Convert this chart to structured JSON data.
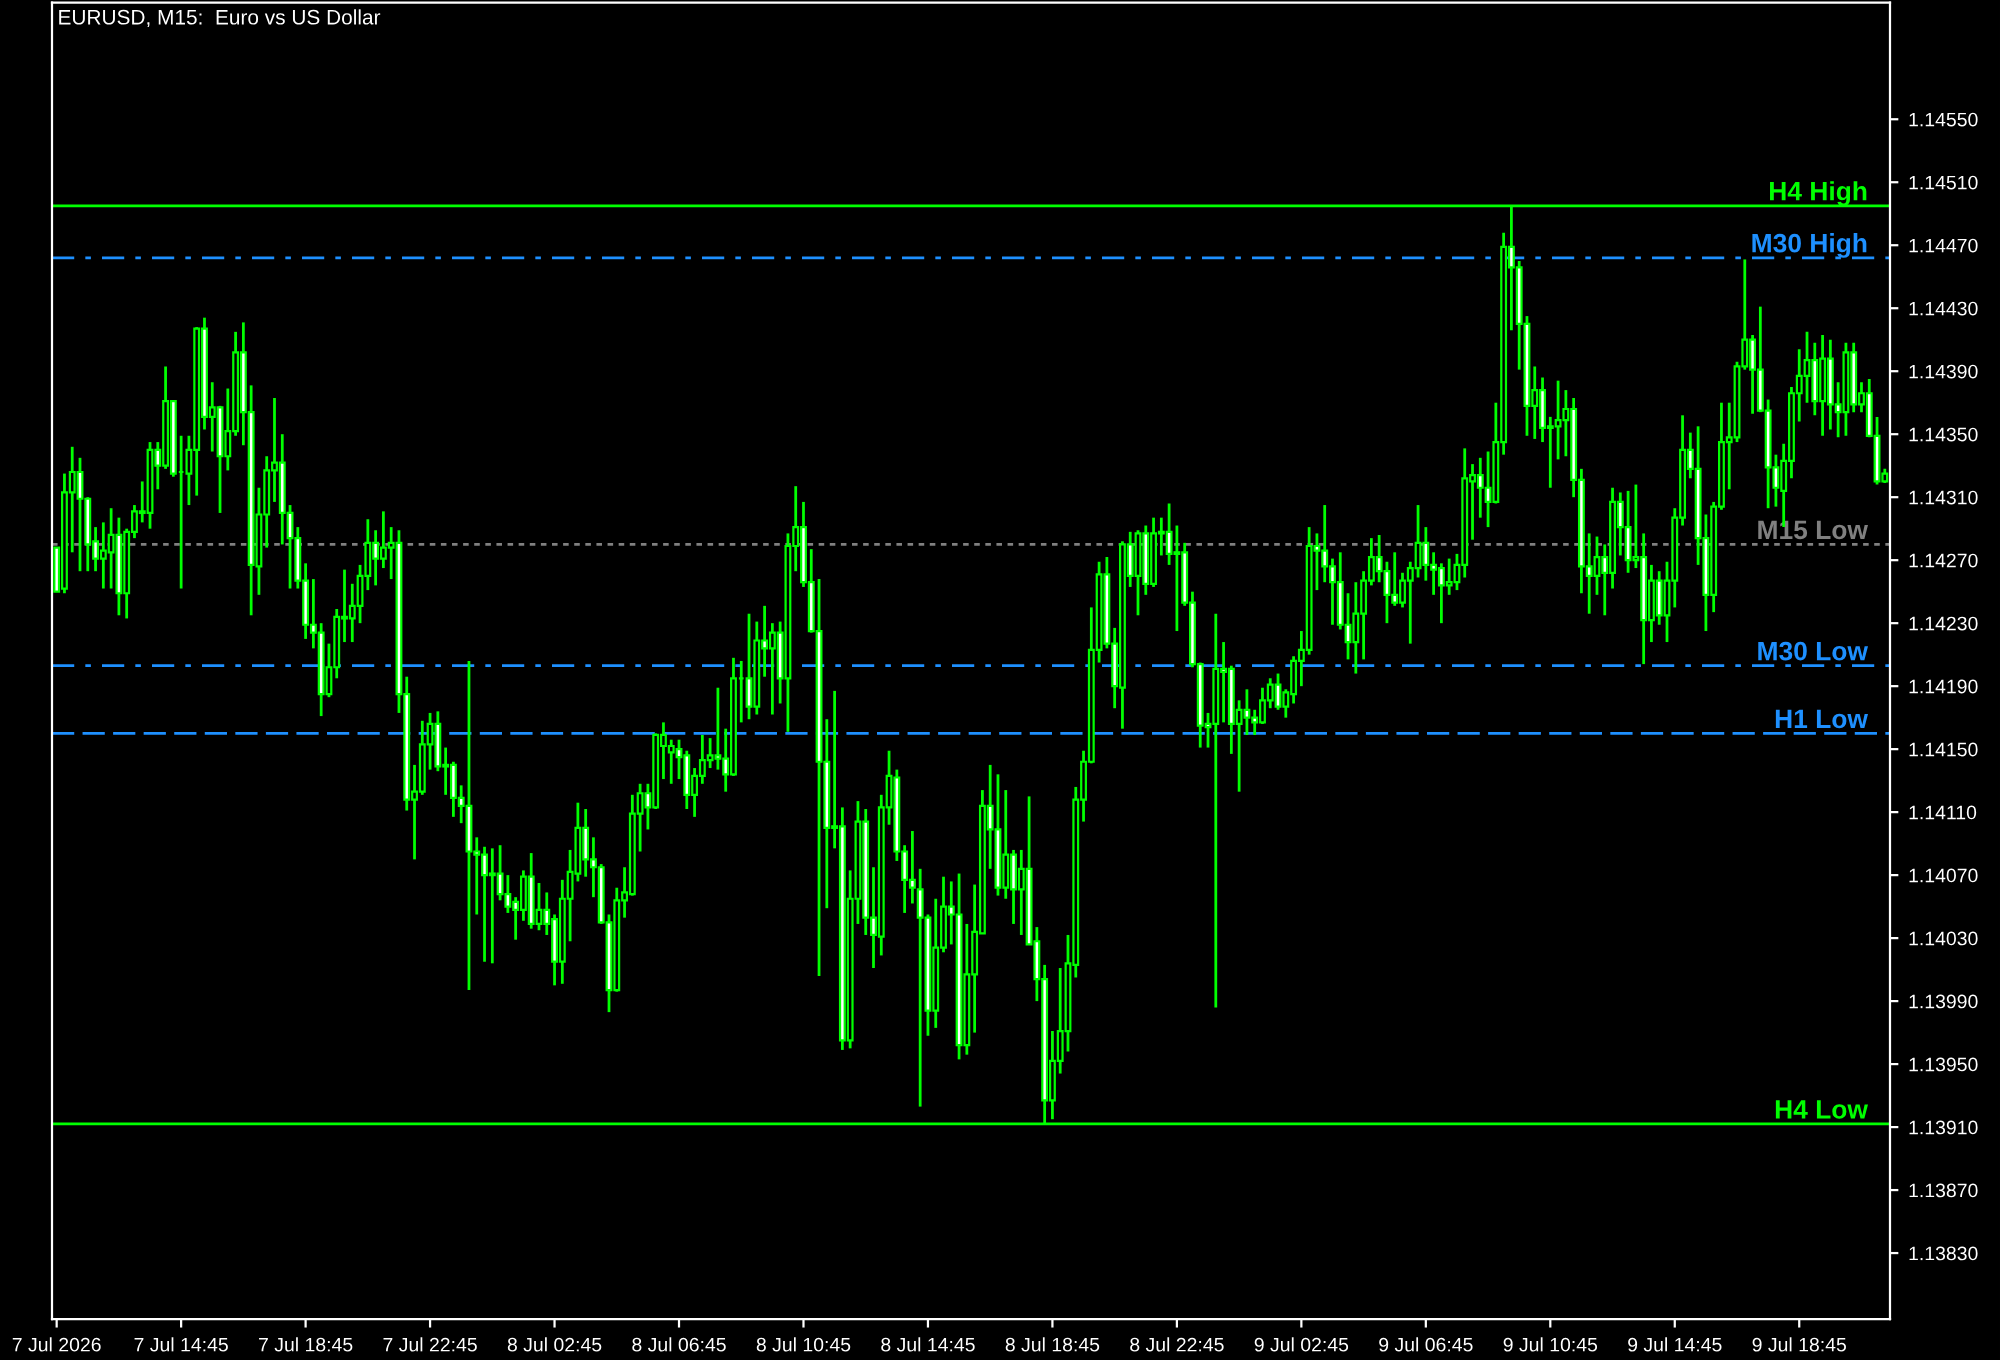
{
  "chart_data": {
    "type": "candlestick",
    "title": "EURUSD, M15:  Euro vs US Dollar",
    "color": "#00ff00",
    "x": [
      "2026-07-07T10:45",
      "2026-07-07T11:00",
      "2026-07-07T11:15",
      "2026-07-07T11:30",
      "2026-07-07T11:45",
      "2026-07-07T12:00",
      "2026-07-07T12:15",
      "2026-07-07T12:30",
      "2026-07-07T12:45",
      "2026-07-07T13:00",
      "2026-07-07T13:15",
      "2026-07-07T13:30",
      "2026-07-07T13:45",
      "2026-07-07T14:00",
      "2026-07-07T14:15",
      "2026-07-07T14:30",
      "2026-07-07T14:45",
      "2026-07-07T15:00",
      "2026-07-07T15:15",
      "2026-07-07T15:30",
      "2026-07-07T15:45",
      "2026-07-07T16:00",
      "2026-07-07T16:15",
      "2026-07-07T16:30",
      "2026-07-07T16:45",
      "2026-07-07T17:00",
      "2026-07-07T17:15",
      "2026-07-07T17:30",
      "2026-07-07T17:45",
      "2026-07-07T18:00",
      "2026-07-07T18:15",
      "2026-07-07T18:30",
      "2026-07-07T18:45",
      "2026-07-07T19:00",
      "2026-07-07T19:15",
      "2026-07-07T19:30",
      "2026-07-07T19:45",
      "2026-07-07T20:00",
      "2026-07-07T20:15",
      "2026-07-07T20:30",
      "2026-07-07T20:45",
      "2026-07-07T21:00",
      "2026-07-07T21:15",
      "2026-07-07T21:30",
      "2026-07-07T21:45",
      "2026-07-07T22:00",
      "2026-07-07T22:15",
      "2026-07-07T22:30",
      "2026-07-07T22:45",
      "2026-07-07T23:00",
      "2026-07-07T23:15",
      "2026-07-07T23:30",
      "2026-07-07T23:45",
      "2026-07-08T00:00",
      "2026-07-08T00:15",
      "2026-07-08T00:30",
      "2026-07-08T00:45",
      "2026-07-08T01:00",
      "2026-07-08T01:15",
      "2026-07-08T01:30",
      "2026-07-08T01:45",
      "2026-07-08T02:00",
      "2026-07-08T02:15",
      "2026-07-08T02:30",
      "2026-07-08T02:45",
      "2026-07-08T03:00",
      "2026-07-08T03:15",
      "2026-07-08T03:30",
      "2026-07-08T03:45",
      "2026-07-08T04:00",
      "2026-07-08T04:15",
      "2026-07-08T04:30",
      "2026-07-08T04:45",
      "2026-07-08T05:00",
      "2026-07-08T05:15",
      "2026-07-08T05:30",
      "2026-07-08T05:45",
      "2026-07-08T06:00",
      "2026-07-08T06:15",
      "2026-07-08T06:30",
      "2026-07-08T06:45",
      "2026-07-08T07:00",
      "2026-07-08T07:15",
      "2026-07-08T07:30",
      "2026-07-08T07:45",
      "2026-07-08T08:00",
      "2026-07-08T08:15",
      "2026-07-08T08:30",
      "2026-07-08T08:45",
      "2026-07-08T09:00",
      "2026-07-08T09:15",
      "2026-07-08T09:30",
      "2026-07-08T09:45",
      "2026-07-08T10:00",
      "2026-07-08T10:15",
      "2026-07-08T10:30",
      "2026-07-08T10:45",
      "2026-07-08T11:00",
      "2026-07-08T11:15",
      "2026-07-08T11:30",
      "2026-07-08T11:45",
      "2026-07-08T12:00",
      "2026-07-08T12:15",
      "2026-07-08T12:30",
      "2026-07-08T12:45",
      "2026-07-08T13:00",
      "2026-07-08T13:15",
      "2026-07-08T13:30",
      "2026-07-08T13:45",
      "2026-07-08T14:00",
      "2026-07-08T14:15",
      "2026-07-08T14:30",
      "2026-07-08T14:45",
      "2026-07-08T15:00",
      "2026-07-08T15:15",
      "2026-07-08T15:30",
      "2026-07-08T15:45",
      "2026-07-08T16:00",
      "2026-07-08T16:15",
      "2026-07-08T16:30",
      "2026-07-08T16:45",
      "2026-07-08T17:00",
      "2026-07-08T17:15",
      "2026-07-08T17:30",
      "2026-07-08T17:45",
      "2026-07-08T18:00",
      "2026-07-08T18:15",
      "2026-07-08T18:30",
      "2026-07-08T18:45",
      "2026-07-08T19:00",
      "2026-07-08T19:15",
      "2026-07-08T19:30",
      "2026-07-08T19:45",
      "2026-07-08T20:00",
      "2026-07-08T20:15",
      "2026-07-08T20:30",
      "2026-07-08T20:45",
      "2026-07-08T21:00",
      "2026-07-08T21:15",
      "2026-07-08T21:30",
      "2026-07-08T21:45",
      "2026-07-08T22:00",
      "2026-07-08T22:15",
      "2026-07-08T22:30",
      "2026-07-08T22:45",
      "2026-07-08T23:00",
      "2026-07-08T23:15",
      "2026-07-08T23:30",
      "2026-07-08T23:45",
      "2026-07-09T00:00",
      "2026-07-09T00:15",
      "2026-07-09T00:30",
      "2026-07-09T00:45",
      "2026-07-09T01:00",
      "2026-07-09T01:15",
      "2026-07-09T01:30",
      "2026-07-09T01:45",
      "2026-07-09T02:00",
      "2026-07-09T02:15",
      "2026-07-09T02:30",
      "2026-07-09T02:45",
      "2026-07-09T03:00",
      "2026-07-09T03:15",
      "2026-07-09T03:30",
      "2026-07-09T03:45",
      "2026-07-09T04:00",
      "2026-07-09T04:15",
      "2026-07-09T04:30",
      "2026-07-09T04:45",
      "2026-07-09T05:00",
      "2026-07-09T05:15",
      "2026-07-09T05:30",
      "2026-07-09T05:45",
      "2026-07-09T06:00",
      "2026-07-09T06:15",
      "2026-07-09T06:30",
      "2026-07-09T06:45",
      "2026-07-09T07:00",
      "2026-07-09T07:15",
      "2026-07-09T07:30",
      "2026-07-09T07:45",
      "2026-07-09T08:00",
      "2026-07-09T08:15",
      "2026-07-09T08:30",
      "2026-07-09T08:45",
      "2026-07-09T09:00",
      "2026-07-09T09:15",
      "2026-07-09T09:30",
      "2026-07-09T09:45",
      "2026-07-09T10:00",
      "2026-07-09T10:15",
      "2026-07-09T10:30",
      "2026-07-09T10:45",
      "2026-07-09T11:00",
      "2026-07-09T11:15",
      "2026-07-09T11:30",
      "2026-07-09T11:45",
      "2026-07-09T12:00",
      "2026-07-09T12:15",
      "2026-07-09T12:30",
      "2026-07-09T12:45",
      "2026-07-09T13:00",
      "2026-07-09T13:15",
      "2026-07-09T13:30",
      "2026-07-09T13:45",
      "2026-07-09T14:00",
      "2026-07-09T14:15",
      "2026-07-09T14:30",
      "2026-07-09T14:45",
      "2026-07-09T15:00",
      "2026-07-09T15:15",
      "2026-07-09T15:30",
      "2026-07-09T15:45",
      "2026-07-09T16:00",
      "2026-07-09T16:15",
      "2026-07-09T16:30",
      "2026-07-09T16:45",
      "2026-07-09T17:00",
      "2026-07-09T17:15",
      "2026-07-09T17:30",
      "2026-07-09T17:45",
      "2026-07-09T18:00",
      "2026-07-09T18:15",
      "2026-07-09T18:30",
      "2026-07-09T18:45",
      "2026-07-09T19:00",
      "2026-07-09T19:15",
      "2026-07-09T19:30",
      "2026-07-09T19:45",
      "2026-07-09T20:00",
      "2026-07-09T20:15",
      "2026-07-09T20:30",
      "2026-07-09T20:45",
      "2026-07-09T21:00",
      "2026-07-09T21:15",
      "2026-07-09T21:30"
    ],
    "ohlc": [
      [
        1.14278,
        1.14278,
        1.1425,
        1.1425
      ],
      [
        1.14252,
        1.14325,
        1.14249,
        1.14313
      ],
      [
        1.14313,
        1.14342,
        1.14275,
        1.14326
      ],
      [
        1.14326,
        1.14335,
        1.14263,
        1.14309
      ],
      [
        1.14309,
        1.1431,
        1.14263,
        1.1428
      ],
      [
        1.14282,
        1.14291,
        1.14263,
        1.14271
      ],
      [
        1.14271,
        1.14294,
        1.14252,
        1.14276
      ],
      [
        1.14275,
        1.14303,
        1.14252,
        1.14286
      ],
      [
        1.14286,
        1.14297,
        1.14235,
        1.14249
      ],
      [
        1.14249,
        1.1429,
        1.14233,
        1.14288
      ],
      [
        1.14288,
        1.14305,
        1.14284,
        1.14301
      ],
      [
        1.14301,
        1.1432,
        1.14294,
        1.143
      ],
      [
        1.143,
        1.14345,
        1.1429,
        1.1434
      ],
      [
        1.1434,
        1.14345,
        1.14315,
        1.1433
      ],
      [
        1.1433,
        1.14393,
        1.14328,
        1.14371
      ],
      [
        1.14371,
        1.14371,
        1.14323,
        1.14325
      ],
      [
        1.14326,
        1.14349,
        1.14252,
        1.14326
      ],
      [
        1.14325,
        1.14349,
        1.14305,
        1.1434
      ],
      [
        1.1434,
        1.14418,
        1.14311,
        1.14417
      ],
      [
        1.14417,
        1.14424,
        1.14353,
        1.14361
      ],
      [
        1.14361,
        1.14383,
        1.14339,
        1.14367
      ],
      [
        1.14367,
        1.14368,
        1.143,
        1.14336
      ],
      [
        1.14336,
        1.14379,
        1.14327,
        1.14352
      ],
      [
        1.14352,
        1.14415,
        1.14349,
        1.14402
      ],
      [
        1.14402,
        1.14421,
        1.14343,
        1.14364
      ],
      [
        1.14364,
        1.14381,
        1.14235,
        1.14267
      ],
      [
        1.14266,
        1.14316,
        1.14248,
        1.14299
      ],
      [
        1.14299,
        1.14336,
        1.14278,
        1.14327
      ],
      [
        1.14327,
        1.14373,
        1.14307,
        1.14332
      ],
      [
        1.14332,
        1.1435,
        1.1428,
        1.143
      ],
      [
        1.143,
        1.14305,
        1.14252,
        1.14284
      ],
      [
        1.14284,
        1.14291,
        1.14252,
        1.14257
      ],
      [
        1.14257,
        1.14268,
        1.1422,
        1.14229
      ],
      [
        1.14229,
        1.14258,
        1.14214,
        1.14224
      ],
      [
        1.14224,
        1.1423,
        1.14171,
        1.14185
      ],
      [
        1.14185,
        1.14217,
        1.14183,
        1.14202
      ],
      [
        1.14202,
        1.14239,
        1.14195,
        1.14234
      ],
      [
        1.14234,
        1.14264,
        1.14218,
        1.14233
      ],
      [
        1.14233,
        1.14255,
        1.14218,
        1.14241
      ],
      [
        1.14241,
        1.14267,
        1.1423,
        1.1426
      ],
      [
        1.1426,
        1.14296,
        1.14251,
        1.14281
      ],
      [
        1.14281,
        1.14289,
        1.14254,
        1.14271
      ],
      [
        1.14271,
        1.14301,
        1.14265,
        1.14278
      ],
      [
        1.14278,
        1.14291,
        1.14258,
        1.14281
      ],
      [
        1.14281,
        1.14289,
        1.14173,
        1.14185
      ],
      [
        1.14185,
        1.14196,
        1.14111,
        1.14118
      ],
      [
        1.14118,
        1.1414,
        1.1408,
        1.14123
      ],
      [
        1.14123,
        1.14168,
        1.14121,
        1.14153
      ],
      [
        1.14153,
        1.14173,
        1.14137,
        1.14166
      ],
      [
        1.14166,
        1.14174,
        1.14136,
        1.14139
      ],
      [
        1.14139,
        1.14151,
        1.14121,
        1.1414
      ],
      [
        1.1414,
        1.14142,
        1.14107,
        1.14119
      ],
      [
        1.14119,
        1.14127,
        1.14103,
        1.14114
      ],
      [
        1.14114,
        1.14206,
        1.13997,
        1.14085
      ],
      [
        1.14085,
        1.14094,
        1.14045,
        1.14083
      ],
      [
        1.14083,
        1.14088,
        1.14015,
        1.1407
      ],
      [
        1.14071,
        1.14087,
        1.14014,
        1.1407
      ],
      [
        1.14071,
        1.14089,
        1.14054,
        1.14058
      ],
      [
        1.14058,
        1.1407,
        1.14046,
        1.1405
      ],
      [
        1.14053,
        1.14056,
        1.14029,
        1.14048
      ],
      [
        1.14048,
        1.14073,
        1.14041,
        1.14069
      ],
      [
        1.14069,
        1.14084,
        1.14036,
        1.14039
      ],
      [
        1.14039,
        1.14065,
        1.14035,
        1.14048
      ],
      [
        1.14048,
        1.14059,
        1.14032,
        1.14039
      ],
      [
        1.14042,
        1.14045,
        1.14,
        1.14015
      ],
      [
        1.14015,
        1.14067,
        1.14001,
        1.14055
      ],
      [
        1.14055,
        1.14086,
        1.14028,
        1.14072
      ],
      [
        1.14071,
        1.14116,
        1.14066,
        1.141
      ],
      [
        1.141,
        1.14112,
        1.14069,
        1.1408
      ],
      [
        1.1408,
        1.14094,
        1.14056,
        1.14075
      ],
      [
        1.14075,
        1.14077,
        1.14039,
        1.1404
      ],
      [
        1.1404,
        1.14045,
        1.13983,
        1.13997
      ],
      [
        1.13997,
        1.14062,
        1.13996,
        1.14054
      ],
      [
        1.14054,
        1.14075,
        1.14043,
        1.14059
      ],
      [
        1.14058,
        1.14121,
        1.14057,
        1.14109
      ],
      [
        1.14109,
        1.14128,
        1.14085,
        1.14122
      ],
      [
        1.14122,
        1.14128,
        1.14099,
        1.14113
      ],
      [
        1.14113,
        1.1416,
        1.14112,
        1.14159
      ],
      [
        1.14152,
        1.14167,
        1.14131,
        1.14159
      ],
      [
        1.14148,
        1.14156,
        1.14128,
        1.14152
      ],
      [
        1.1415,
        1.14156,
        1.14131,
        1.14145
      ],
      [
        1.14146,
        1.14149,
        1.14112,
        1.14121
      ],
      [
        1.14121,
        1.14138,
        1.14107,
        1.14133
      ],
      [
        1.14133,
        1.14159,
        1.14128,
        1.14143
      ],
      [
        1.14143,
        1.14157,
        1.14138,
        1.14146
      ],
      [
        1.14146,
        1.14189,
        1.14137,
        1.14144
      ],
      [
        1.14144,
        1.14163,
        1.14123,
        1.14134
      ],
      [
        1.14134,
        1.14208,
        1.14133,
        1.14195
      ],
      [
        1.14195,
        1.14206,
        1.14167,
        1.14195
      ],
      [
        1.14195,
        1.14236,
        1.14169,
        1.14177
      ],
      [
        1.14177,
        1.14231,
        1.14172,
        1.14219
      ],
      [
        1.14219,
        1.14241,
        1.14196,
        1.14214
      ],
      [
        1.14214,
        1.1423,
        1.14172,
        1.14224
      ],
      [
        1.14224,
        1.14231,
        1.14179,
        1.14195
      ],
      [
        1.14195,
        1.14287,
        1.14161,
        1.14279
      ],
      [
        1.14279,
        1.14317,
        1.14263,
        1.14291
      ],
      [
        1.14291,
        1.14307,
        1.14253,
        1.14256
      ],
      [
        1.14256,
        1.14277,
        1.14224,
        1.14225
      ],
      [
        1.14225,
        1.14258,
        1.14006,
        1.14142
      ],
      [
        1.14142,
        1.14169,
        1.14049,
        1.141
      ],
      [
        1.141,
        1.14187,
        1.14087,
        1.14101
      ],
      [
        1.14101,
        1.14113,
        1.13959,
        1.13965
      ],
      [
        1.13965,
        1.14073,
        1.1396,
        1.14055
      ],
      [
        1.14055,
        1.14117,
        1.14039,
        1.14104
      ],
      [
        1.14104,
        1.14112,
        1.14032,
        1.14043
      ],
      [
        1.14043,
        1.14075,
        1.14011,
        1.14032
      ],
      [
        1.14031,
        1.14121,
        1.14019,
        1.14113
      ],
      [
        1.14113,
        1.14149,
        1.14102,
        1.14133
      ],
      [
        1.14132,
        1.14137,
        1.14079,
        1.14085
      ],
      [
        1.14085,
        1.14089,
        1.14046,
        1.14067
      ],
      [
        1.14067,
        1.14098,
        1.14052,
        1.14062
      ],
      [
        1.14061,
        1.14074,
        1.13923,
        1.14043
      ],
      [
        1.14043,
        1.14045,
        1.13968,
        1.13984
      ],
      [
        1.13984,
        1.14055,
        1.13973,
        1.14024
      ],
      [
        1.14024,
        1.14069,
        1.14021,
        1.1405
      ],
      [
        1.1405,
        1.14066,
        1.14026,
        1.14045
      ],
      [
        1.14045,
        1.14071,
        1.13953,
        1.13962
      ],
      [
        1.13962,
        1.14039,
        1.13956,
        1.14007
      ],
      [
        1.14007,
        1.14064,
        1.1397,
        1.14034
      ],
      [
        1.14033,
        1.14124,
        1.14033,
        1.14114
      ],
      [
        1.14114,
        1.1414,
        1.14074,
        1.14099
      ],
      [
        1.14099,
        1.14134,
        1.14057,
        1.14062
      ],
      [
        1.14062,
        1.14124,
        1.14055,
        1.14083
      ],
      [
        1.14083,
        1.14086,
        1.14039,
        1.14061
      ],
      [
        1.14061,
        1.14086,
        1.14032,
        1.14074
      ],
      [
        1.14074,
        1.1412,
        1.14026,
        1.14026
      ],
      [
        1.14028,
        1.14037,
        1.1399,
        1.14004
      ],
      [
        1.14004,
        1.14013,
        1.13912,
        1.13927
      ],
      [
        1.13927,
        1.13971,
        1.13915,
        1.13952
      ],
      [
        1.13952,
        1.14011,
        1.13944,
        1.13971
      ],
      [
        1.13971,
        1.14032,
        1.13958,
        1.14014
      ],
      [
        1.14013,
        1.14126,
        1.14005,
        1.14118
      ],
      [
        1.14118,
        1.14149,
        1.14104,
        1.14142
      ],
      [
        1.14142,
        1.1424,
        1.14141,
        1.14213
      ],
      [
        1.14213,
        1.14269,
        1.14205,
        1.14261
      ],
      [
        1.14261,
        1.14272,
        1.14214,
        1.14217
      ],
      [
        1.14217,
        1.14227,
        1.14176,
        1.1419
      ],
      [
        1.14189,
        1.14282,
        1.14163,
        1.1428
      ],
      [
        1.1428,
        1.14288,
        1.14253,
        1.1426
      ],
      [
        1.1426,
        1.14289,
        1.14235,
        1.14287
      ],
      [
        1.14287,
        1.14292,
        1.14248,
        1.14255
      ],
      [
        1.14255,
        1.14297,
        1.14253,
        1.14287
      ],
      [
        1.14287,
        1.14297,
        1.14273,
        1.14288
      ],
      [
        1.14288,
        1.14306,
        1.14267,
        1.14274
      ],
      [
        1.14274,
        1.14292,
        1.14225,
        1.14275
      ],
      [
        1.14275,
        1.14281,
        1.14241,
        1.14243
      ],
      [
        1.14243,
        1.1425,
        1.14202,
        1.14204
      ],
      [
        1.14204,
        1.14205,
        1.14151,
        1.14165
      ],
      [
        1.14166,
        1.14173,
        1.14151,
        1.14164
      ],
      [
        1.14166,
        1.14236,
        1.13986,
        1.14201
      ],
      [
        1.14201,
        1.14218,
        1.14167,
        1.14199
      ],
      [
        1.14201,
        1.14203,
        1.14147,
        1.14166
      ],
      [
        1.14166,
        1.14181,
        1.14123,
        1.14175
      ],
      [
        1.14175,
        1.14188,
        1.14159,
        1.1417
      ],
      [
        1.1417,
        1.14175,
        1.14159,
        1.14167
      ],
      [
        1.14167,
        1.14189,
        1.14166,
        1.14181
      ],
      [
        1.14181,
        1.14195,
        1.14176,
        1.14191
      ],
      [
        1.14191,
        1.14198,
        1.14175,
        1.14177
      ],
      [
        1.14177,
        1.14188,
        1.1417,
        1.14186
      ],
      [
        1.14185,
        1.14209,
        1.14179,
        1.14206
      ],
      [
        1.14206,
        1.14225,
        1.1419,
        1.14213
      ],
      [
        1.14213,
        1.14291,
        1.1421,
        1.14279
      ],
      [
        1.14279,
        1.14287,
        1.14251,
        1.14276
      ],
      [
        1.14276,
        1.14305,
        1.14256,
        1.14266
      ],
      [
        1.14266,
        1.14271,
        1.14229,
        1.14256
      ],
      [
        1.14256,
        1.14275,
        1.14226,
        1.14229
      ],
      [
        1.14229,
        1.14249,
        1.14207,
        1.14218
      ],
      [
        1.14218,
        1.14256,
        1.14198,
        1.14236
      ],
      [
        1.14236,
        1.14263,
        1.14207,
        1.14257
      ],
      [
        1.14257,
        1.14284,
        1.14254,
        1.14272
      ],
      [
        1.14272,
        1.14286,
        1.14256,
        1.14263
      ],
      [
        1.14263,
        1.14269,
        1.1423,
        1.14248
      ],
      [
        1.14248,
        1.14275,
        1.14241,
        1.14243
      ],
      [
        1.14243,
        1.14262,
        1.1424,
        1.14257
      ],
      [
        1.14257,
        1.14269,
        1.14217,
        1.14265
      ],
      [
        1.14265,
        1.14305,
        1.14259,
        1.14281
      ],
      [
        1.14281,
        1.14291,
        1.14257,
        1.14267
      ],
      [
        1.14267,
        1.14275,
        1.14248,
        1.14264
      ],
      [
        1.14265,
        1.14268,
        1.1423,
        1.14254
      ],
      [
        1.14254,
        1.14271,
        1.14248,
        1.14256
      ],
      [
        1.14256,
        1.14274,
        1.14251,
        1.14267
      ],
      [
        1.14267,
        1.14341,
        1.14259,
        1.14322
      ],
      [
        1.1432,
        1.14331,
        1.14283,
        1.14324
      ],
      [
        1.14324,
        1.14335,
        1.14297,
        1.14316
      ],
      [
        1.14316,
        1.14339,
        1.14291,
        1.14307
      ],
      [
        1.14307,
        1.1437,
        1.14306,
        1.14345
      ],
      [
        1.14345,
        1.14478,
        1.14337,
        1.14469
      ],
      [
        1.14469,
        1.14495,
        1.14416,
        1.14456
      ],
      [
        1.14456,
        1.1446,
        1.14391,
        1.1442
      ],
      [
        1.1442,
        1.14425,
        1.14349,
        1.14368
      ],
      [
        1.14368,
        1.14393,
        1.14347,
        1.14378
      ],
      [
        1.14378,
        1.14386,
        1.14345,
        1.14354
      ],
      [
        1.14354,
        1.14361,
        1.14316,
        1.14355
      ],
      [
        1.14355,
        1.14384,
        1.14334,
        1.14359
      ],
      [
        1.14359,
        1.14378,
        1.14336,
        1.14366
      ],
      [
        1.14366,
        1.14373,
        1.1431,
        1.14321
      ],
      [
        1.14321,
        1.14328,
        1.14249,
        1.14266
      ],
      [
        1.14266,
        1.14287,
        1.14236,
        1.1426
      ],
      [
        1.1426,
        1.14285,
        1.14248,
        1.14272
      ],
      [
        1.14272,
        1.1428,
        1.14235,
        1.14262
      ],
      [
        1.14262,
        1.14316,
        1.14252,
        1.14307
      ],
      [
        1.14307,
        1.14313,
        1.14273,
        1.14291
      ],
      [
        1.14291,
        1.14314,
        1.14262,
        1.1427
      ],
      [
        1.1427,
        1.14318,
        1.14265,
        1.14272
      ],
      [
        1.14272,
        1.14287,
        1.14204,
        1.14232
      ],
      [
        1.14232,
        1.14267,
        1.14218,
        1.14257
      ],
      [
        1.14257,
        1.14263,
        1.14229,
        1.14235
      ],
      [
        1.14235,
        1.14269,
        1.14218,
        1.14257
      ],
      [
        1.14257,
        1.14303,
        1.1424,
        1.14297
      ],
      [
        1.14297,
        1.14362,
        1.14292,
        1.1434
      ],
      [
        1.1434,
        1.14351,
        1.14322,
        1.14328
      ],
      [
        1.14328,
        1.14355,
        1.14267,
        1.14284
      ],
      [
        1.14284,
        1.14299,
        1.14225,
        1.14248
      ],
      [
        1.14248,
        1.14307,
        1.14237,
        1.14304
      ],
      [
        1.14304,
        1.1437,
        1.14302,
        1.14345
      ],
      [
        1.14345,
        1.1437,
        1.14315,
        1.14348
      ],
      [
        1.14348,
        1.14396,
        1.14345,
        1.14393
      ],
      [
        1.14393,
        1.14461,
        1.14391,
        1.1441
      ],
      [
        1.1441,
        1.14413,
        1.14363,
        1.14391
      ],
      [
        1.14391,
        1.14431,
        1.14364,
        1.14365
      ],
      [
        1.14365,
        1.14372,
        1.14303,
        1.14329
      ],
      [
        1.14329,
        1.14337,
        1.14304,
        1.14316
      ],
      [
        1.14314,
        1.14344,
        1.14291,
        1.14333
      ],
      [
        1.14333,
        1.1438,
        1.14322,
        1.14376
      ],
      [
        1.14376,
        1.14404,
        1.14358,
        1.14387
      ],
      [
        1.14387,
        1.14415,
        1.1437,
        1.14397
      ],
      [
        1.14397,
        1.14408,
        1.14362,
        1.14371
      ],
      [
        1.14371,
        1.14413,
        1.14349,
        1.14398
      ],
      [
        1.14398,
        1.1441,
        1.14353,
        1.14369
      ],
      [
        1.14369,
        1.14383,
        1.14348,
        1.14364
      ],
      [
        1.14364,
        1.14408,
        1.14349,
        1.14402
      ],
      [
        1.14402,
        1.14408,
        1.14364,
        1.14369
      ],
      [
        1.14369,
        1.14383,
        1.14364,
        1.14376
      ],
      [
        1.14376,
        1.14385,
        1.14348,
        1.14349
      ],
      [
        1.14349,
        1.14361,
        1.14318,
        1.1432
      ],
      [
        1.1432,
        1.14328,
        1.14319,
        1.14325
      ]
    ],
    "xlim": [
      "2026-07-07T10:36",
      "2026-07-09T21:40"
    ],
    "xticks": [
      {
        "value": "2026-07-07T10:45",
        "label": "7 Jul 2026"
      },
      {
        "value": "2026-07-07T14:45",
        "label": "7 Jul 14:45"
      },
      {
        "value": "2026-07-07T18:45",
        "label": "7 Jul 18:45"
      },
      {
        "value": "2026-07-07T22:45",
        "label": "7 Jul 22:45"
      },
      {
        "value": "2026-07-08T02:45",
        "label": "8 Jul 02:45"
      },
      {
        "value": "2026-07-08T06:45",
        "label": "8 Jul 06:45"
      },
      {
        "value": "2026-07-08T10:45",
        "label": "8 Jul 10:45"
      },
      {
        "value": "2026-07-08T14:45",
        "label": "8 Jul 14:45"
      },
      {
        "value": "2026-07-08T18:45",
        "label": "8 Jul 18:45"
      },
      {
        "value": "2026-07-08T22:45",
        "label": "8 Jul 22:45"
      },
      {
        "value": "2026-07-09T02:45",
        "label": "9 Jul 02:45"
      },
      {
        "value": "2026-07-09T06:45",
        "label": "9 Jul 06:45"
      },
      {
        "value": "2026-07-09T10:45",
        "label": "9 Jul 10:45"
      },
      {
        "value": "2026-07-09T14:45",
        "label": "9 Jul 14:45"
      },
      {
        "value": "2026-07-09T18:45",
        "label": "9 Jul 18:45"
      }
    ],
    "ylim": [
      1.13788,
      1.14624
    ],
    "yticks": [
      {
        "value": 1.1383,
        "label": "1.13830"
      },
      {
        "value": 1.1387,
        "label": "1.13870"
      },
      {
        "value": 1.1391,
        "label": "1.13910"
      },
      {
        "value": 1.1395,
        "label": "1.13950"
      },
      {
        "value": 1.1399,
        "label": "1.13990"
      },
      {
        "value": 1.1403,
        "label": "1.14030"
      },
      {
        "value": 1.1407,
        "label": "1.14070"
      },
      {
        "value": 1.1411,
        "label": "1.14110"
      },
      {
        "value": 1.1415,
        "label": "1.14150"
      },
      {
        "value": 1.1419,
        "label": "1.14190"
      },
      {
        "value": 1.1423,
        "label": "1.14230"
      },
      {
        "value": 1.1427,
        "label": "1.14270"
      },
      {
        "value": 1.1431,
        "label": "1.14310"
      },
      {
        "value": 1.1435,
        "label": "1.14350"
      },
      {
        "value": 1.1439,
        "label": "1.14390"
      },
      {
        "value": 1.1443,
        "label": "1.14430"
      },
      {
        "value": 1.1447,
        "label": "1.14470"
      },
      {
        "value": 1.1451,
        "label": "1.14510"
      },
      {
        "value": 1.1455,
        "label": "1.14550"
      }
    ],
    "ref_lines": [
      {
        "axis": "y",
        "value": 1.14495,
        "label": "H4 High",
        "color": "#00ff00",
        "line_style": "solid"
      },
      {
        "axis": "y",
        "value": 1.14462,
        "label": "M30 High",
        "color": "#1e90ff",
        "line_style": "dashdot"
      },
      {
        "axis": "y",
        "value": 1.1428,
        "label": "M15 Low",
        "color": "#808080",
        "line_style": "dotted"
      },
      {
        "axis": "y",
        "value": 1.14203,
        "label": "M30 Low",
        "color": "#1e90ff",
        "line_style": "dashdot"
      },
      {
        "axis": "y",
        "value": 1.1416,
        "label": "H1 Low",
        "color": "#1e90ff",
        "line_style": "dashed"
      },
      {
        "axis": "y",
        "value": 1.13912,
        "label": "H4 Low",
        "color": "#00ff00",
        "line_style": "solid"
      }
    ],
    "grid": false,
    "legend": false
  }
}
